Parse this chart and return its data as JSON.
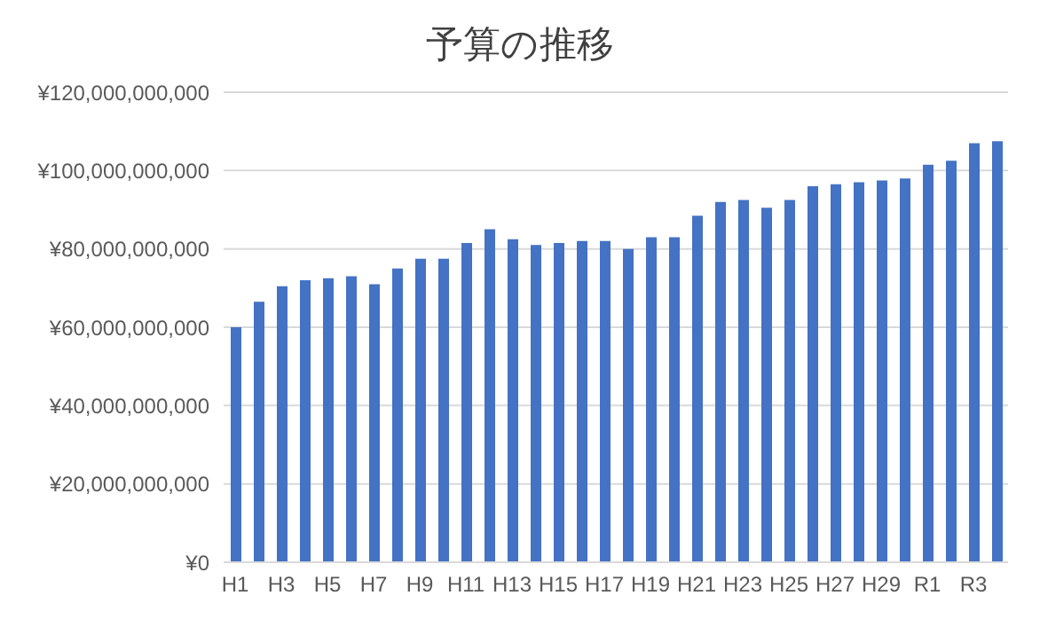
{
  "chart_data": {
    "type": "bar",
    "title": "予算の推移",
    "categories": [
      "H1",
      null,
      "H3",
      null,
      "H5",
      null,
      "H7",
      null,
      "H9",
      null,
      "H11",
      null,
      "H13",
      null,
      "H15",
      null,
      "H17",
      null,
      "H19",
      null,
      "H21",
      null,
      "H23",
      null,
      "H25",
      null,
      "H27",
      null,
      "H29",
      null,
      "R1",
      null,
      "R3",
      null
    ],
    "values": [
      60000000000,
      66500000000,
      70500000000,
      72000000000,
      72500000000,
      73000000000,
      71000000000,
      75000000000,
      77500000000,
      77500000000,
      81500000000,
      85000000000,
      82500000000,
      81000000000,
      81500000000,
      82000000000,
      82000000000,
      80000000000,
      83000000000,
      83000000000,
      88500000000,
      92000000000,
      92500000000,
      90500000000,
      92500000000,
      96000000000,
      96500000000,
      97000000000,
      97500000000,
      98000000000,
      101500000000,
      102500000000,
      107000000000,
      107500000000
    ],
    "color": "#4472c4",
    "ylim": [
      0,
      120000000000
    ],
    "yticks": [
      {
        "value": 0,
        "label": "¥0"
      },
      {
        "value": 20000000000,
        "label": "¥20,000,000,000"
      },
      {
        "value": 40000000000,
        "label": "¥40,000,000,000"
      },
      {
        "value": 60000000000,
        "label": "¥60,000,000,000"
      },
      {
        "value": 80000000000,
        "label": "¥80,000,000,000"
      },
      {
        "value": 100000000000,
        "label": "¥100,000,000,000"
      },
      {
        "value": 120000000000,
        "label": "¥120,000,000,000"
      }
    ],
    "grid": "y"
  }
}
